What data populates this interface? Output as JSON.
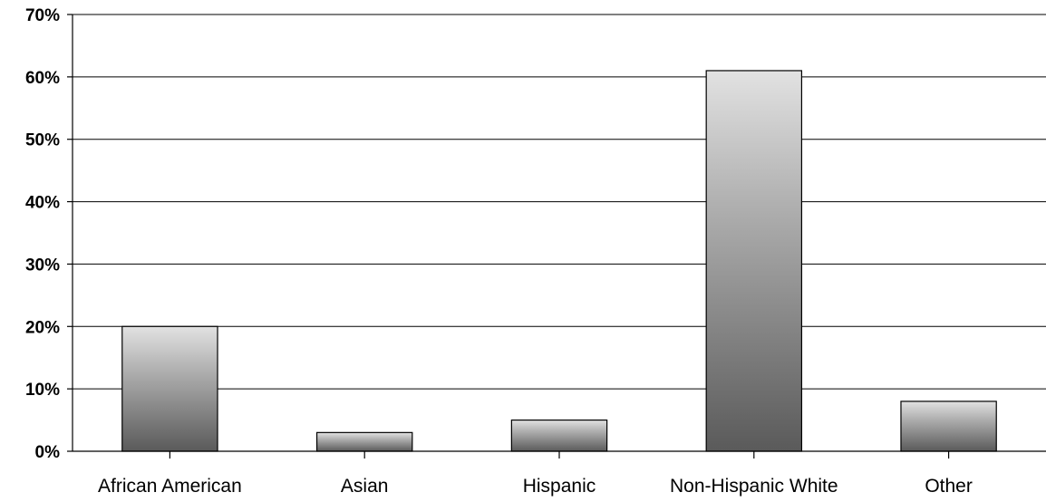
{
  "chart_data": {
    "type": "bar",
    "title": "",
    "xlabel": "",
    "ylabel": "",
    "categories": [
      "African American",
      "Asian",
      "Hispanic",
      "Non-Hispanic White",
      "Other"
    ],
    "values": [
      20,
      3,
      5,
      61,
      8
    ],
    "ylim": [
      0,
      70
    ],
    "y_ticks": [
      0,
      10,
      20,
      30,
      40,
      50,
      60,
      70
    ],
    "y_tick_labels": [
      "0%",
      "10%",
      "20%",
      "30%",
      "40%",
      "50%",
      "60%",
      "70%"
    ],
    "grid": true,
    "legend": "none",
    "bar_fill_top": "#e2e2e2",
    "bar_fill_bottom": "#5a5a5a"
  }
}
